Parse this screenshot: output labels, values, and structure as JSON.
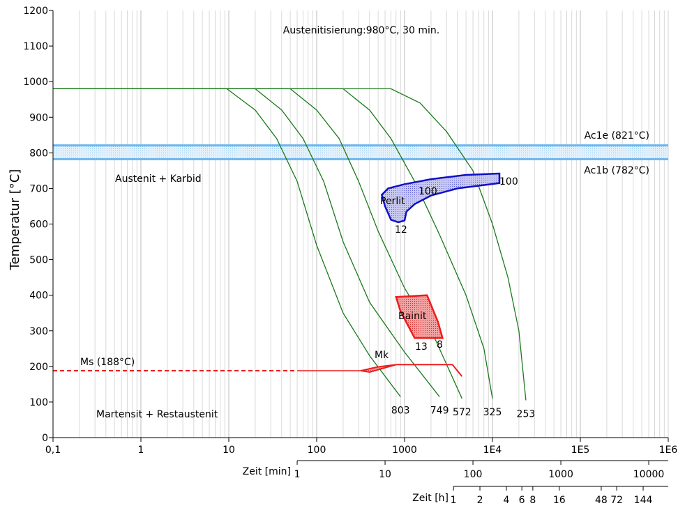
{
  "chart_data": {
    "type": "line",
    "title": "Austenitisierung:980°C, 30 min.",
    "ylabel": "Temperatur [°C]",
    "xscale": "log",
    "xlim": [
      0.1,
      1000000
    ],
    "ylim": [
      0,
      1200
    ],
    "grid": true,
    "x_tick_labels": [
      "0,1",
      "1",
      "10",
      "100",
      "1000",
      "1E4",
      "1E5",
      "1E6"
    ],
    "y_ticks": [
      0,
      100,
      200,
      300,
      400,
      500,
      600,
      700,
      800,
      900,
      1000,
      1100,
      1200
    ],
    "min_axis": {
      "label": "Zeit [min]",
      "tick_labels": [
        "1",
        "10",
        "100",
        "1000",
        "10000"
      ],
      "tick_values_min": [
        1,
        10,
        100,
        1000,
        10000
      ]
    },
    "hour_axis": {
      "label": "Zeit [h]",
      "tick_labels": [
        "1",
        "2",
        "4",
        "6",
        "8",
        "16",
        "48",
        "72",
        "144"
      ],
      "tick_values_h": [
        1,
        2,
        4,
        6,
        8,
        16,
        48,
        72,
        144
      ]
    },
    "region_labels": [
      "Austenit + Karbid",
      "Martensit + Restaustenit"
    ],
    "ac_lines": {
      "ac1e_label": "Ac1e (821°C)",
      "ac1e": 821,
      "ac1b_label": "Ac1b (782°C)",
      "ac1b": 782
    },
    "ms": {
      "label": "Ms (188°C)",
      "value": 188,
      "mk_label": "Mk"
    },
    "cooling_curves": [
      {
        "label": "803",
        "points": [
          [
            0.1,
            980
          ],
          [
            9.5,
            980
          ],
          [
            20,
            920
          ],
          [
            35,
            840
          ],
          [
            60,
            720
          ],
          [
            100,
            540
          ],
          [
            200,
            350
          ],
          [
            400,
            230
          ],
          [
            900,
            115
          ]
        ]
      },
      {
        "label": "749",
        "points": [
          [
            0.1,
            980
          ],
          [
            20,
            980
          ],
          [
            40,
            920
          ],
          [
            70,
            840
          ],
          [
            120,
            720
          ],
          [
            200,
            550
          ],
          [
            400,
            380
          ],
          [
            1000,
            240
          ],
          [
            2500,
            115
          ]
        ]
      },
      {
        "label": "572",
        "points": [
          [
            0.1,
            980
          ],
          [
            50,
            980
          ],
          [
            100,
            920
          ],
          [
            180,
            840
          ],
          [
            300,
            720
          ],
          [
            500,
            580
          ],
          [
            1000,
            420
          ],
          [
            2200,
            280
          ],
          [
            4500,
            110
          ]
        ]
      },
      {
        "label": "325",
        "points": [
          [
            0.1,
            980
          ],
          [
            200,
            980
          ],
          [
            400,
            920
          ],
          [
            700,
            840
          ],
          [
            1300,
            720
          ],
          [
            2500,
            570
          ],
          [
            5000,
            400
          ],
          [
            8000,
            250
          ],
          [
            10000,
            110
          ]
        ]
      },
      {
        "label": "253",
        "points": [
          [
            0.1,
            980
          ],
          [
            700,
            980
          ],
          [
            1500,
            940
          ],
          [
            3000,
            860
          ],
          [
            6000,
            750
          ],
          [
            10000,
            600
          ],
          [
            15000,
            450
          ],
          [
            20000,
            300
          ],
          [
            24000,
            105
          ]
        ]
      }
    ],
    "perlit": {
      "label": "Perlit",
      "start_label": "12",
      "mid_label": "100",
      "end_label": "100",
      "outline": [
        [
          12000,
          742
        ],
        [
          5000,
          738
        ],
        [
          2000,
          726
        ],
        [
          1000,
          712
        ],
        [
          650,
          700
        ],
        [
          550,
          682
        ],
        [
          600,
          650
        ],
        [
          700,
          612
        ],
        [
          850,
          605
        ],
        [
          1000,
          610
        ],
        [
          1050,
          635
        ],
        [
          1300,
          656
        ],
        [
          2000,
          680
        ],
        [
          4000,
          700
        ],
        [
          12000,
          715
        ]
      ]
    },
    "bainit": {
      "label": "Bainit",
      "low_labels": [
        "13",
        "8"
      ],
      "outline": [
        [
          800,
          395
        ],
        [
          1800,
          400
        ],
        [
          2400,
          325
        ],
        [
          2700,
          280
        ],
        [
          1300,
          280
        ],
        [
          900,
          355
        ]
      ]
    },
    "colors": {
      "curve": "#1a7a1a",
      "ac_band": "#6fb8f0",
      "perlit": "#1010c8",
      "bainit": "#ee1c1c",
      "grid": "#c8c8c8"
    }
  }
}
